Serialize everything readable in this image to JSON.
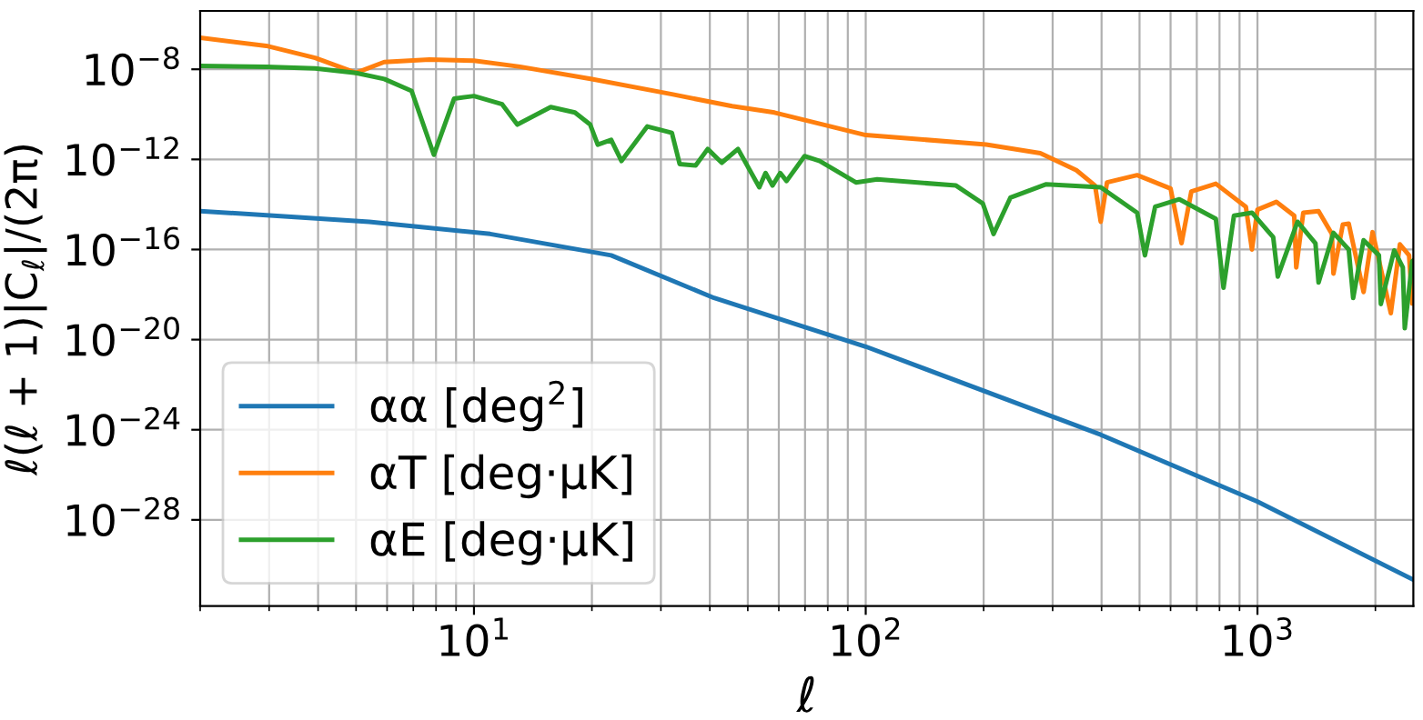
{
  "chart_data": {
    "type": "line",
    "xlabel": "ℓ",
    "ylabel": "ℓ(ℓ + 1)|C$_{ℓ}$|/(2π)",
    "log": "xy",
    "grid": true,
    "legend": "bottom left",
    "line_style": "solid",
    "xlim": [
      2,
      2500
    ],
    "ylim": [
      1.5e-32,
      3.9e-06
    ],
    "xticks": [
      {
        "value": 10,
        "label": "10$^{1}$"
      },
      {
        "value": 100,
        "label": "10$^{2}$"
      },
      {
        "value": 1000,
        "label": "10$^{3}$"
      }
    ],
    "yticks": [
      {
        "value": 1e-28,
        "label": "10$^{−28}$"
      },
      {
        "value": 1e-24,
        "label": "10$^{−24}$"
      },
      {
        "value": 1e-20,
        "label": "10$^{−20}$"
      },
      {
        "value": 1e-16,
        "label": "10$^{−16}$"
      },
      {
        "value": 1e-12,
        "label": "10$^{−12}$"
      },
      {
        "value": 1e-08,
        "label": "10$^{−8}$"
      }
    ],
    "series": [
      {
        "name": "αα [deg$^{2}$]",
        "color": "#1f77b4",
        "x": [
          2,
          5.4,
          11,
          22.4,
          41,
          100,
          398,
          1000,
          2500
        ],
        "values": [
          5.1e-15,
          1.7e-15,
          4.9e-16,
          5.5e-17,
          7.1e-19,
          4.9e-21,
          6e-25,
          6.5e-28,
          2.2e-31
        ]
      },
      {
        "name": "αT [deg·μK]",
        "color": "#ff7f0e",
        "x": [
          2,
          2.95,
          3.93,
          5.0,
          5.9,
          7.7,
          10,
          13.1,
          20,
          32,
          45.6,
          58.5,
          100,
          203,
          279,
          345,
          385,
          398,
          413,
          493,
          600,
          640,
          678,
          783,
          934,
          968,
          1000,
          1117,
          1241,
          1256,
          1309,
          1432,
          1549,
          1563,
          1652,
          1710,
          1866,
          1967,
          2190,
          2310,
          2438,
          2483,
          2500
        ],
        "values": [
          2.5e-07,
          1.1e-07,
          3.2e-08,
          6.9e-09,
          2.1e-08,
          2.7e-08,
          2.4e-08,
          1.3e-08,
          3.7e-09,
          7.8e-10,
          2.3e-10,
          1.2e-10,
          1.2e-11,
          4.6e-12,
          1.9e-12,
          3.3e-13,
          6.9e-14,
          1.7e-15,
          9.5e-14,
          2e-13,
          5.1e-14,
          1.9e-16,
          3.8e-14,
          8.3e-14,
          7.9e-15,
          1e-16,
          5.9e-15,
          1.3e-14,
          3.2e-15,
          1.6e-17,
          4.3e-15,
          5.1e-15,
          4.9e-16,
          8.5e-18,
          1.3e-15,
          1.4e-15,
          1.3e-18,
          5.9e-16,
          1.5e-19,
          1.7e-16,
          5.5e-17,
          4e-19,
          3e-17
        ]
      },
      {
        "name": "αE [deg·μK]",
        "color": "#2ca02c",
        "x": [
          2,
          2.95,
          3.93,
          5.0,
          5.9,
          6.93,
          7.9,
          8.9,
          10,
          11.8,
          12.9,
          15.7,
          18.1,
          19.8,
          20.7,
          22.4,
          23.8,
          27.7,
          32,
          33.5,
          36.8,
          39.5,
          42.9,
          47.2,
          53.5,
          55.5,
          57.8,
          60.5,
          62.8,
          69.8,
          76.3,
          94.4,
          107,
          170,
          199,
          212,
          234,
          289,
          398,
          493,
          516,
          548,
          632,
          783,
          819,
          871,
          968,
          1097,
          1127,
          1265,
          1406,
          1432,
          1563,
          1710,
          1755,
          1866,
          2042,
          2065,
          2234,
          2350,
          2377,
          2483,
          2500
        ],
        "values": [
          1.4e-08,
          1.3e-08,
          1.1e-08,
          6.9e-09,
          3.7e-09,
          1.1e-09,
          1.6e-12,
          5e-10,
          6.5e-10,
          2.8e-10,
          3.5e-11,
          2.1e-10,
          1.2e-10,
          3.5e-11,
          4.5e-12,
          7.4e-12,
          8.5e-13,
          2.9e-11,
          1.5e-11,
          6.2e-13,
          5.4e-13,
          2.9e-12,
          7.1e-13,
          2.9e-12,
          5.8e-14,
          2.5e-13,
          6.9e-14,
          2.5e-13,
          1.1e-13,
          1.4e-12,
          8.5e-13,
          9.5e-14,
          1.3e-13,
          6.9e-14,
          1.1e-14,
          4.9e-16,
          2e-14,
          7.9e-14,
          5.8e-14,
          4.3e-15,
          5.5e-17,
          7.9e-15,
          1.7e-14,
          2.3e-15,
          2e-18,
          3.2e-15,
          4.3e-15,
          3.5e-16,
          6.3e-18,
          1.7e-15,
          1.9e-16,
          3.4e-18,
          5.5e-16,
          1e-16,
          7.1e-19,
          2.6e-16,
          5.5e-17,
          3.8e-19,
          9.1e-17,
          1.6e-17,
          3.2e-20,
          3e-17,
          3.3e-17
        ]
      }
    ]
  }
}
